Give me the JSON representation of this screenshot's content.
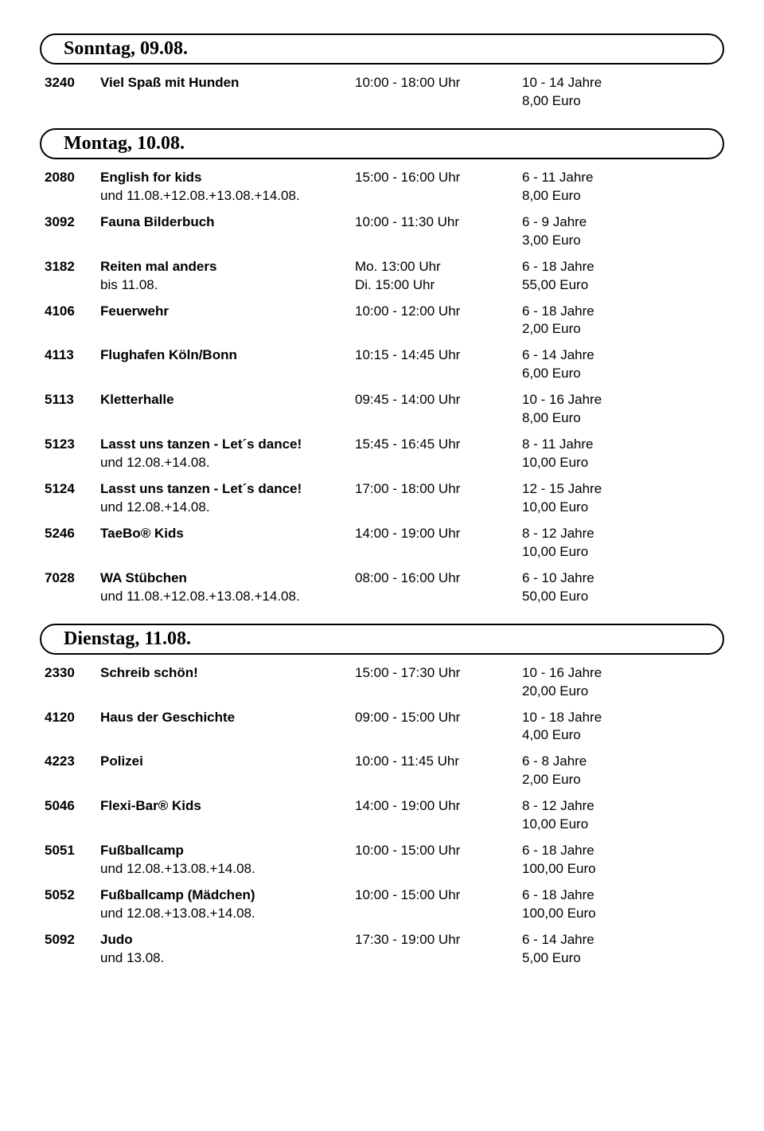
{
  "sections": [
    {
      "heading": "Sonntag, 09.08.",
      "entries": [
        {
          "code": "3240",
          "title": "Viel Spaß mit Hunden",
          "title_sub": "",
          "time": "10:00 - 18:00 Uhr",
          "time_sub": "",
          "age": "10 - 14 Jahre",
          "price": "8,00 Euro"
        }
      ]
    },
    {
      "heading": "Montag, 10.08.",
      "entries": [
        {
          "code": "2080",
          "title": "English for kids",
          "title_sub": "und 11.08.+12.08.+13.08.+14.08.",
          "time": "15:00 - 16:00 Uhr",
          "time_sub": "",
          "age": "6 - 11 Jahre",
          "price": "8,00 Euro"
        },
        {
          "code": "3092",
          "title": "Fauna Bilderbuch",
          "title_sub": "",
          "time": "10:00 - 11:30 Uhr",
          "time_sub": "",
          "age": "6 - 9 Jahre",
          "price": "3,00 Euro"
        },
        {
          "code": "3182",
          "title": "Reiten mal anders",
          "title_sub": "bis 11.08.",
          "time": "Mo. 13:00 Uhr",
          "time_sub": "Di. 15:00 Uhr",
          "age": "6 - 18 Jahre",
          "price": "55,00 Euro"
        },
        {
          "code": "4106",
          "title": "Feuerwehr",
          "title_sub": "",
          "time": "10:00 - 12:00 Uhr",
          "time_sub": "",
          "age": "6 - 18 Jahre",
          "price": "2,00 Euro"
        },
        {
          "code": "4113",
          "title": "Flughafen Köln/Bonn",
          "title_sub": "",
          "time": "10:15 - 14:45 Uhr",
          "time_sub": "",
          "age": "6 - 14 Jahre",
          "price": "6,00 Euro"
        },
        {
          "code": "5113",
          "title": "Kletterhalle",
          "title_sub": "",
          "time": "09:45 - 14:00 Uhr",
          "time_sub": "",
          "age": "10 - 16 Jahre",
          "price": "8,00 Euro"
        },
        {
          "code": "5123",
          "title": "Lasst uns tanzen - Let´s dance!",
          "title_sub": "und 12.08.+14.08.",
          "time": "15:45 - 16:45 Uhr",
          "time_sub": "",
          "age": "8 - 11 Jahre",
          "price": "10,00 Euro"
        },
        {
          "code": "5124",
          "title": "Lasst uns tanzen - Let´s dance!",
          "title_sub": "und 12.08.+14.08.",
          "time": "17:00 - 18:00 Uhr",
          "time_sub": "",
          "age": "12 - 15 Jahre",
          "price": "10,00 Euro"
        },
        {
          "code": "5246",
          "title": "TaeBo® Kids",
          "title_sub": "",
          "time": "14:00 - 19:00 Uhr",
          "time_sub": "",
          "age": "8 - 12 Jahre",
          "price": "10,00 Euro"
        },
        {
          "code": "7028",
          "title": "WA Stübchen",
          "title_sub": "und 11.08.+12.08.+13.08.+14.08.",
          "time": "08:00 - 16:00 Uhr",
          "time_sub": "",
          "age": "6 - 10 Jahre",
          "price": "50,00 Euro"
        }
      ]
    },
    {
      "heading": "Dienstag, 11.08.",
      "entries": [
        {
          "code": "2330",
          "title": "Schreib schön!",
          "title_sub": "",
          "time": "15:00 - 17:30 Uhr",
          "time_sub": "",
          "age": "10 - 16 Jahre",
          "price": "20,00 Euro"
        },
        {
          "code": "4120",
          "title": "Haus der Geschichte",
          "title_sub": "",
          "time": "09:00 - 15:00 Uhr",
          "time_sub": "",
          "age": "10 - 18 Jahre",
          "price": "4,00 Euro"
        },
        {
          "code": "4223",
          "title": "Polizei",
          "title_sub": "",
          "time": "10:00 - 11:45 Uhr",
          "time_sub": "",
          "age": "6 - 8 Jahre",
          "price": "2,00 Euro"
        },
        {
          "code": "5046",
          "title": "Flexi-Bar® Kids",
          "title_sub": "",
          "time": "14:00 - 19:00 Uhr",
          "time_sub": "",
          "age": "8 - 12 Jahre",
          "price": "10,00 Euro"
        },
        {
          "code": "5051",
          "title": "Fußballcamp",
          "title_sub": "und 12.08.+13.08.+14.08.",
          "time": "10:00 - 15:00 Uhr",
          "time_sub": "",
          "age": "6 - 18 Jahre",
          "price": "100,00 Euro"
        },
        {
          "code": "5052",
          "title": "Fußballcamp (Mädchen)",
          "title_sub": "und 12.08.+13.08.+14.08.",
          "time": "10:00 - 15:00 Uhr",
          "time_sub": "",
          "age": "6 - 18 Jahre",
          "price": "100,00 Euro"
        },
        {
          "code": "5092",
          "title": "Judo",
          "title_sub": "und 13.08.",
          "time": "17:30 - 19:00 Uhr",
          "time_sub": "",
          "age": "6 - 14 Jahre",
          "price": "5,00 Euro"
        }
      ]
    }
  ]
}
